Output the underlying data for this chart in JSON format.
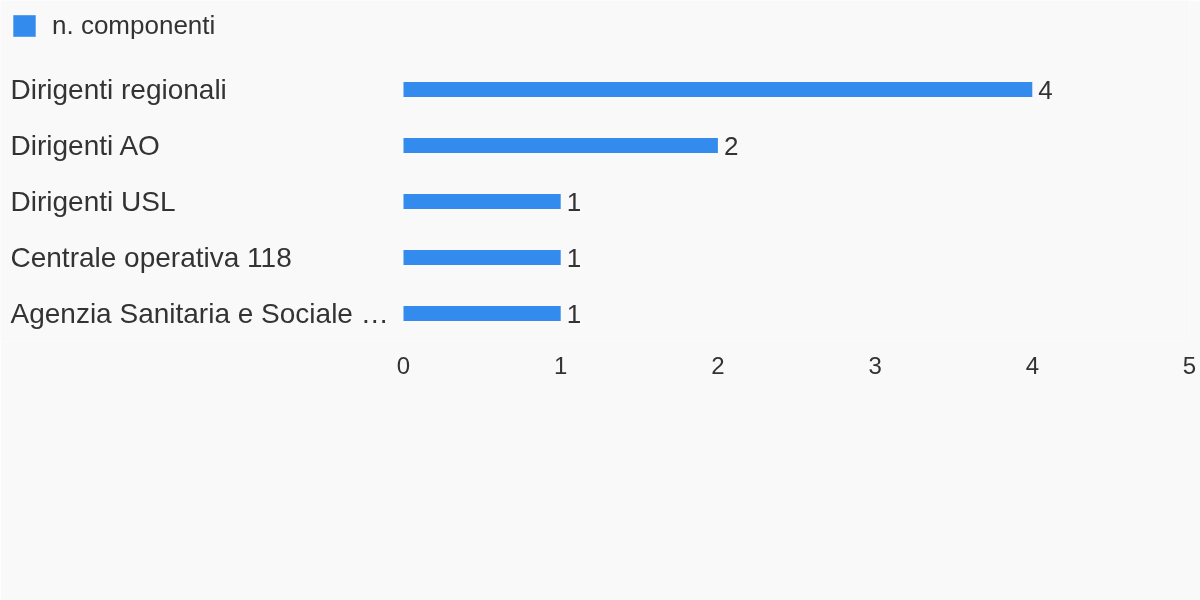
{
  "chart_data": {
    "type": "bar",
    "orientation": "horizontal",
    "categories": [
      "Dirigenti regionali",
      "Dirigenti AO",
      "Dirigenti USL",
      "Centrale operativa 118",
      "Agenzia Sanitaria e Sociale …"
    ],
    "series": [
      {
        "name": "n. componenti",
        "color": "#338ced",
        "values": [
          4,
          2,
          1,
          1,
          1
        ]
      }
    ],
    "xlim": [
      0,
      5
    ],
    "xticks": [
      0,
      1,
      2,
      3,
      4,
      5
    ],
    "data_labels": true,
    "legend": "top left"
  }
}
